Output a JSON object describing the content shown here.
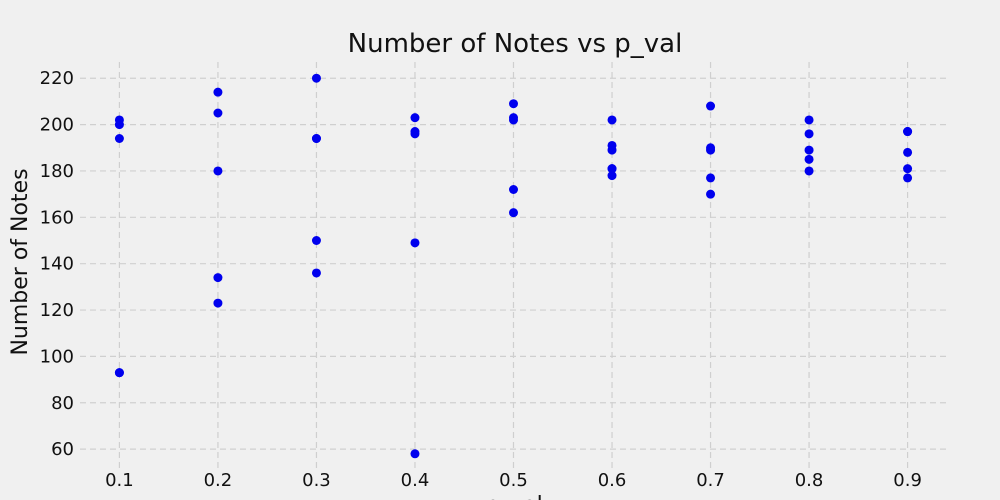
{
  "chart_data": {
    "type": "scatter",
    "title": "Number of Notes vs p_val",
    "xlabel": "p_val",
    "ylabel": "Number of Notes",
    "xlim": [
      0.06,
      0.94
    ],
    "ylim": [
      51,
      227
    ],
    "xticks": [
      0.1,
      0.2,
      0.3,
      0.4,
      0.5,
      0.6,
      0.7,
      0.8,
      0.9
    ],
    "yticks": [
      60,
      80,
      100,
      120,
      140,
      160,
      180,
      200,
      220
    ],
    "grid": true,
    "point_color": "#0000ee",
    "series": [
      {
        "x": [
          0.1,
          0.1,
          0.1,
          0.1,
          0.1,
          0.2,
          0.2,
          0.2,
          0.2,
          0.2,
          0.3,
          0.3,
          0.3,
          0.3,
          0.3,
          0.4,
          0.4,
          0.4,
          0.4,
          0.4,
          0.5,
          0.5,
          0.5,
          0.5,
          0.5,
          0.6,
          0.6,
          0.6,
          0.6,
          0.6,
          0.6,
          0.7,
          0.7,
          0.7,
          0.7,
          0.7,
          0.8,
          0.8,
          0.8,
          0.8,
          0.8,
          0.9,
          0.9,
          0.9,
          0.9,
          0.9
        ],
        "y": [
          202,
          200,
          194,
          93,
          93,
          214,
          205,
          180,
          134,
          123,
          220,
          194,
          194,
          150,
          136,
          203,
          197,
          196,
          149,
          58,
          209,
          203,
          202,
          172,
          162,
          202,
          191,
          189,
          181,
          178,
          181,
          208,
          190,
          189,
          177,
          170,
          202,
          196,
          189,
          185,
          180,
          197,
          197,
          188,
          181,
          177
        ]
      }
    ]
  }
}
